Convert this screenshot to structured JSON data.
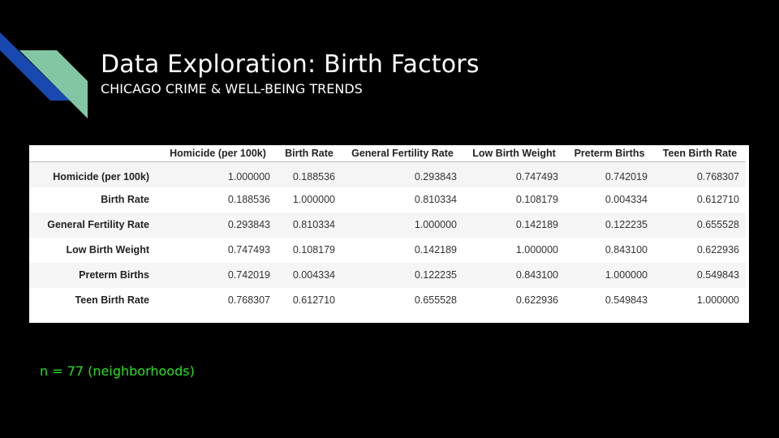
{
  "slide": {
    "title": "Data Exploration: Birth Factors",
    "subtitle": "CHICAGO CRIME & WELL-BEING TRENDS",
    "note": "n = 77 (neighborhoods)",
    "colors": {
      "background": "#000000",
      "accent_blue": "#1848b0",
      "accent_green": "#82c6a4",
      "note_green": "#27e024"
    }
  },
  "table": {
    "columns": [
      "",
      "Homicide (per 100k)",
      "Birth Rate",
      "General Fertility Rate",
      "Low Birth Weight",
      "Preterm Births",
      "Teen Birth Rate"
    ],
    "rows": [
      {
        "label": "Homicide (per 100k)",
        "values": [
          "1.000000",
          "0.188536",
          "0.293843",
          "0.747493",
          "0.742019",
          "0.768307"
        ]
      },
      {
        "label": "Birth Rate",
        "values": [
          "0.188536",
          "1.000000",
          "0.810334",
          "0.108179",
          "0.004334",
          "0.612710"
        ]
      },
      {
        "label": "General Fertility Rate",
        "values": [
          "0.293843",
          "0.810334",
          "1.000000",
          "0.142189",
          "0.122235",
          "0.655528"
        ]
      },
      {
        "label": "Low Birth Weight",
        "values": [
          "0.747493",
          "0.108179",
          "0.142189",
          "1.000000",
          "0.843100",
          "0.622936"
        ]
      },
      {
        "label": "Preterm Births",
        "values": [
          "0.742019",
          "0.004334",
          "0.122235",
          "0.843100",
          "1.000000",
          "0.549843"
        ]
      },
      {
        "label": "Teen Birth Rate",
        "values": [
          "0.768307",
          "0.612710",
          "0.655528",
          "0.622936",
          "0.549843",
          "1.000000"
        ]
      }
    ]
  }
}
